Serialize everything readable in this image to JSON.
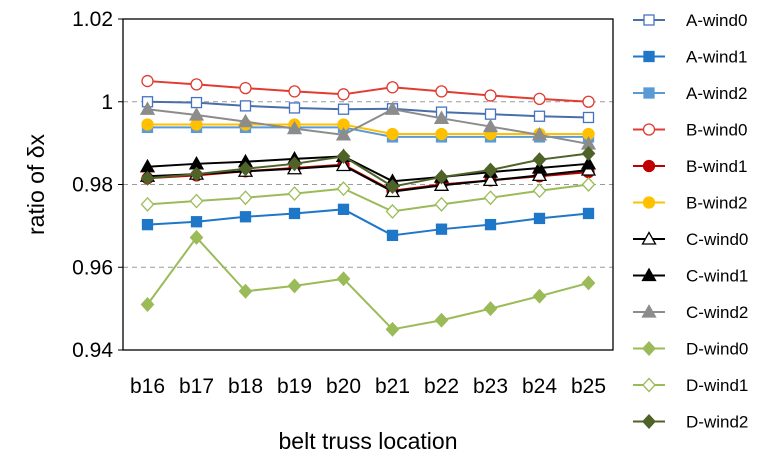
{
  "chart_data": {
    "type": "line",
    "xlabel": "belt truss location",
    "ylabel": "ratio of δx",
    "ylim": [
      0.94,
      1.02
    ],
    "yticks": [
      0.94,
      0.96,
      0.98,
      1,
      1.02
    ],
    "ytick_labels": [
      "0.94",
      "0.96",
      "0.98",
      "1",
      "1.02"
    ],
    "gridlines": [
      0.96,
      0.98,
      1.0
    ],
    "grid_style": "dashed horizontal",
    "legend_position": "right",
    "categories": [
      "b16",
      "b17",
      "b18",
      "b19",
      "b20",
      "b21",
      "b22",
      "b23",
      "b24",
      "b25"
    ],
    "series": [
      {
        "name": "A-wind0",
        "color": "#4472c4",
        "line": "#4a6fa5",
        "marker": "square",
        "fill": "open",
        "values": [
          1.0,
          0.9998,
          0.999,
          0.9985,
          0.9982,
          0.9983,
          0.9975,
          0.997,
          0.9965,
          0.9962
        ]
      },
      {
        "name": "A-wind1",
        "color": "#1f77c8",
        "line": "#1f77c8",
        "marker": "square",
        "fill": "filled",
        "values": [
          0.9703,
          0.971,
          0.9722,
          0.973,
          0.974,
          0.9677,
          0.9692,
          0.9703,
          0.9718,
          0.973
        ]
      },
      {
        "name": "A-wind2",
        "color": "#5b9bd5",
        "line": "#5b9bd5",
        "marker": "square",
        "fill": "filled",
        "values": [
          0.9938,
          0.9938,
          0.9938,
          0.9938,
          0.9938,
          0.9915,
          0.9915,
          0.9915,
          0.9915,
          0.9915
        ]
      },
      {
        "name": "B-wind0",
        "color": "#e03c31",
        "line": "#e03c31",
        "marker": "circle",
        "fill": "open",
        "values": [
          1.005,
          1.0042,
          1.0033,
          1.0025,
          1.0018,
          1.0035,
          1.0025,
          1.0015,
          1.0007,
          1.0
        ]
      },
      {
        "name": "B-wind1",
        "color": "#c00000",
        "line": "#c00000",
        "marker": "circle",
        "fill": "filled",
        "values": [
          0.9815,
          0.9822,
          0.9832,
          0.984,
          0.9848,
          0.9785,
          0.98,
          0.981,
          0.982,
          0.983
        ]
      },
      {
        "name": "B-wind2",
        "color": "#ffc000",
        "line": "#ffc000",
        "marker": "circle",
        "fill": "filled",
        "values": [
          0.9945,
          0.9945,
          0.9945,
          0.9945,
          0.9945,
          0.9922,
          0.9922,
          0.9922,
          0.9922,
          0.9922
        ]
      },
      {
        "name": "C-wind0",
        "color": "#000000",
        "line": "#000000",
        "marker": "triangle",
        "fill": "open",
        "values": [
          0.982,
          0.9825,
          0.9832,
          0.9838,
          0.9846,
          0.9783,
          0.9798,
          0.981,
          0.9822,
          0.9835
        ]
      },
      {
        "name": "C-wind1",
        "color": "#000000",
        "line": "#000000",
        "marker": "triangle",
        "fill": "filled",
        "values": [
          0.9843,
          0.985,
          0.9855,
          0.9862,
          0.9868,
          0.9808,
          0.9818,
          0.983,
          0.984,
          0.985
        ]
      },
      {
        "name": "C-wind2",
        "color": "#8c8c8c",
        "line": "#8c8c8c",
        "marker": "triangle",
        "fill": "filled",
        "values": [
          0.9982,
          0.9968,
          0.9952,
          0.9935,
          0.992,
          0.9982,
          0.996,
          0.994,
          0.992,
          0.9898
        ]
      },
      {
        "name": "D-wind0",
        "color": "#9bbb59",
        "line": "#9bbb59",
        "marker": "diamond",
        "fill": "filled",
        "values": [
          0.951,
          0.9672,
          0.9542,
          0.9555,
          0.9572,
          0.945,
          0.9472,
          0.95,
          0.953,
          0.9562
        ]
      },
      {
        "name": "D-wind1",
        "color": "#9bbb59",
        "line": "#9bbb59",
        "marker": "diamond",
        "fill": "open",
        "values": [
          0.9752,
          0.976,
          0.9768,
          0.9778,
          0.979,
          0.9735,
          0.9752,
          0.9768,
          0.9785,
          0.98
        ]
      },
      {
        "name": "D-wind2",
        "color": "#4f6228",
        "line": "#4f6228",
        "marker": "diamond",
        "fill": "filled",
        "values": [
          0.9815,
          0.9825,
          0.9838,
          0.985,
          0.9868,
          0.9795,
          0.9818,
          0.9835,
          0.986,
          0.9875
        ]
      }
    ]
  }
}
